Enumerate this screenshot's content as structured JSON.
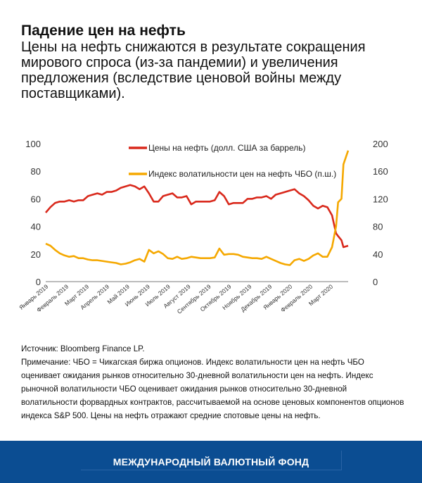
{
  "header": {
    "title": "Падение цен на нефть",
    "subtitle": "Цены на нефть снижаются в результате сокращения мирового спроса (из-за пандемии) и увеличения предложения (вследствие ценовой войны между поставщиками)."
  },
  "chart_data": {
    "type": "line",
    "title": "",
    "xlabel": "",
    "ylabel": "",
    "ylim": [
      0,
      100
    ],
    "y2lim": [
      0,
      200
    ],
    "yticks": [
      "0",
      "20",
      "40",
      "60",
      "80",
      "100"
    ],
    "y2ticks": [
      "0",
      "40",
      "80",
      "120",
      "160",
      "200"
    ],
    "xticks": [
      "Январь 2019",
      "Февраль 2019",
      "Март 2019",
      "Апрель 2019",
      "Май 2019",
      "Июнь 2019",
      "Июль 2019",
      "Август 2019",
      "Сентябрь 2019",
      "Октябрь 2019",
      "Ноябрь 2019",
      "Декабрь 2019",
      "Январь 2020",
      "Февраль 2020",
      "Март 2020"
    ],
    "grid": false,
    "legend_position": "top-center",
    "x": [
      "2019-01-01",
      "2019-01-08",
      "2019-01-15",
      "2019-01-22",
      "2019-01-29",
      "2019-02-05",
      "2019-02-12",
      "2019-02-19",
      "2019-02-26",
      "2019-03-05",
      "2019-03-12",
      "2019-03-19",
      "2019-03-26",
      "2019-04-02",
      "2019-04-09",
      "2019-04-16",
      "2019-04-23",
      "2019-04-30",
      "2019-05-07",
      "2019-05-14",
      "2019-05-21",
      "2019-05-28",
      "2019-06-04",
      "2019-06-11",
      "2019-06-18",
      "2019-06-25",
      "2019-07-02",
      "2019-07-09",
      "2019-07-16",
      "2019-07-23",
      "2019-07-30",
      "2019-08-06",
      "2019-08-13",
      "2019-08-20",
      "2019-08-27",
      "2019-09-03",
      "2019-09-10",
      "2019-09-17",
      "2019-09-24",
      "2019-10-01",
      "2019-10-08",
      "2019-10-15",
      "2019-10-22",
      "2019-10-29",
      "2019-11-05",
      "2019-11-12",
      "2019-11-19",
      "2019-11-26",
      "2019-12-03",
      "2019-12-10",
      "2019-12-17",
      "2019-12-24",
      "2019-12-31",
      "2020-01-07",
      "2020-01-14",
      "2020-01-21",
      "2020-01-28",
      "2020-02-04",
      "2020-02-11",
      "2020-02-18",
      "2020-02-25",
      "2020-03-03",
      "2020-03-09",
      "2020-03-12",
      "2020-03-17",
      "2020-03-20",
      "2020-03-27"
    ],
    "series": [
      {
        "name": "Цены на нефть (долл. США за баррель)",
        "axis": "left",
        "color": "#d9291c",
        "values": [
          50,
          54,
          57,
          58,
          58,
          59,
          58,
          59,
          59,
          62,
          63,
          64,
          63,
          65,
          65,
          66,
          68,
          69,
          70,
          69,
          67,
          69,
          64,
          58,
          58,
          62,
          63,
          64,
          61,
          61,
          62,
          56,
          58,
          58,
          58,
          58,
          59,
          65,
          62,
          56,
          57,
          57,
          57,
          60,
          60,
          61,
          61,
          62,
          60,
          63,
          64,
          65,
          66,
          67,
          64,
          62,
          59,
          55,
          53,
          55,
          54,
          48,
          35,
          33,
          30,
          25,
          26
        ]
      },
      {
        "name": "Индекс волатильности цен на нефть ЧБО (п.ш.)",
        "axis": "right",
        "color": "#f5a800",
        "values": [
          55,
          52,
          46,
          41,
          38,
          36,
          37,
          34,
          34,
          32,
          31,
          31,
          30,
          29,
          28,
          27,
          25,
          26,
          28,
          31,
          33,
          29,
          46,
          41,
          44,
          40,
          34,
          33,
          36,
          33,
          34,
          36,
          35,
          34,
          34,
          34,
          35,
          48,
          39,
          40,
          40,
          39,
          36,
          35,
          34,
          34,
          33,
          36,
          33,
          30,
          27,
          25,
          24,
          31,
          33,
          30,
          33,
          38,
          41,
          36,
          36,
          50,
          80,
          115,
          120,
          170,
          190
        ]
      }
    ]
  },
  "notes": {
    "source": "Источник: Bloomberg Finance LP.",
    "note": "Примечание: ЧБО = Чикагская биржа опционов. Индекс волатильности цен на нефть ЧБО оценивает ожидания рынков относительно 30-дневной волатильности цен на нефть. Индекс рыночной волатильности ЧБО оценивает ожидания рынков относительно 30-дневной волатильности форвардных контрактов, рассчитываемой на основе ценовых компонентов опционов индекса S&P 500. Цены на нефть отражают средние спотовые цены на нефть."
  },
  "footer": {
    "label": "МЕЖДУНАРОДНЫЙ ВАЛЮТНЫЙ ФОНД",
    "color": "#0b4d92"
  }
}
